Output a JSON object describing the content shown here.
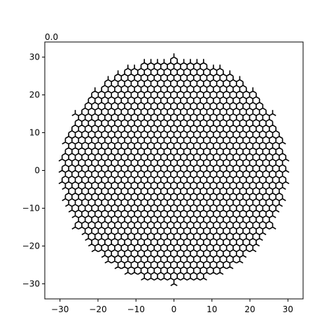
{
  "chart_data": {
    "type": "lattice",
    "title": "0.0",
    "lattice": "honeycomb",
    "bond_length": 1.0,
    "cutoff_radius": 30,
    "xlim": [
      -34,
      34
    ],
    "ylim": [
      -34,
      34
    ],
    "xticks": [
      -30,
      -20,
      -10,
      0,
      10,
      20,
      30
    ],
    "yticks": [
      -30,
      -20,
      -10,
      0,
      10,
      20,
      30
    ],
    "xlabel": "",
    "ylabel": "",
    "grid": false,
    "line_color": "#000000"
  }
}
